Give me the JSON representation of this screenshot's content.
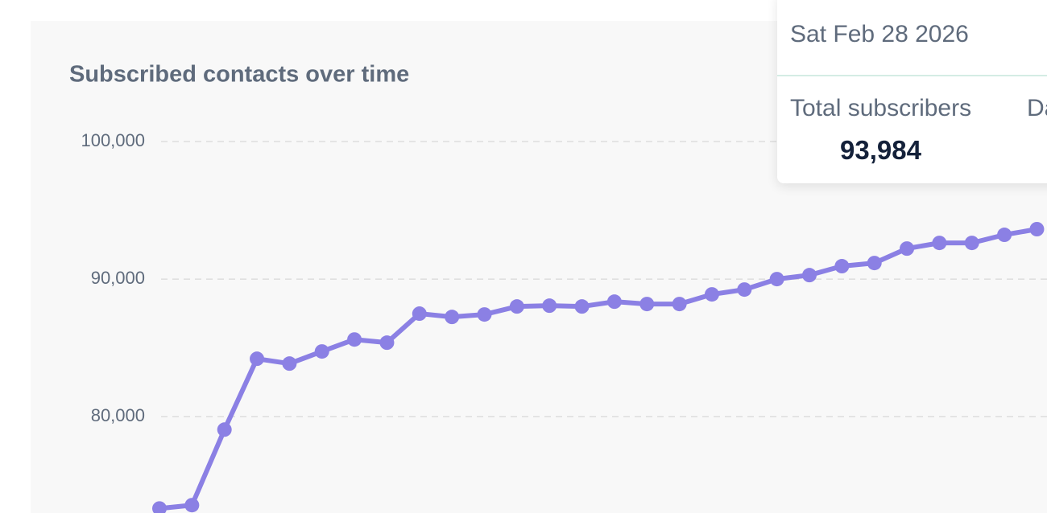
{
  "chart_data": {
    "type": "line",
    "title": "Subscribed contacts over time",
    "categories": [
      null,
      null,
      null,
      null,
      null,
      null,
      null,
      null,
      null,
      null,
      null,
      null,
      null,
      null,
      null,
      null,
      null,
      null,
      null,
      null,
      null,
      null,
      null,
      null,
      null,
      null,
      null,
      null
    ],
    "series": [
      {
        "name": "Total subscribers",
        "color": "#8b80e4",
        "values": [
          73330,
          73570,
          79060,
          84210,
          83860,
          84740,
          85610,
          85380,
          87490,
          87250,
          87430,
          88010,
          88070,
          88010,
          88360,
          88190,
          88190,
          88890,
          89240,
          90000,
          90290,
          90940,
          91170,
          92220,
          92630,
          92630,
          93220,
          93630
        ]
      }
    ],
    "ylim": [
      73000,
      100000
    ],
    "yticks": [
      {
        "value": 80000,
        "label": "80,000"
      },
      {
        "value": 90000,
        "label": "90,000"
      },
      {
        "value": 100000,
        "label": "100,000"
      }
    ],
    "grid": true
  },
  "tooltip": {
    "date": "Sat Feb 28 2026",
    "label": "Total subscribers",
    "value": "93,984",
    "next_label": "Da"
  }
}
